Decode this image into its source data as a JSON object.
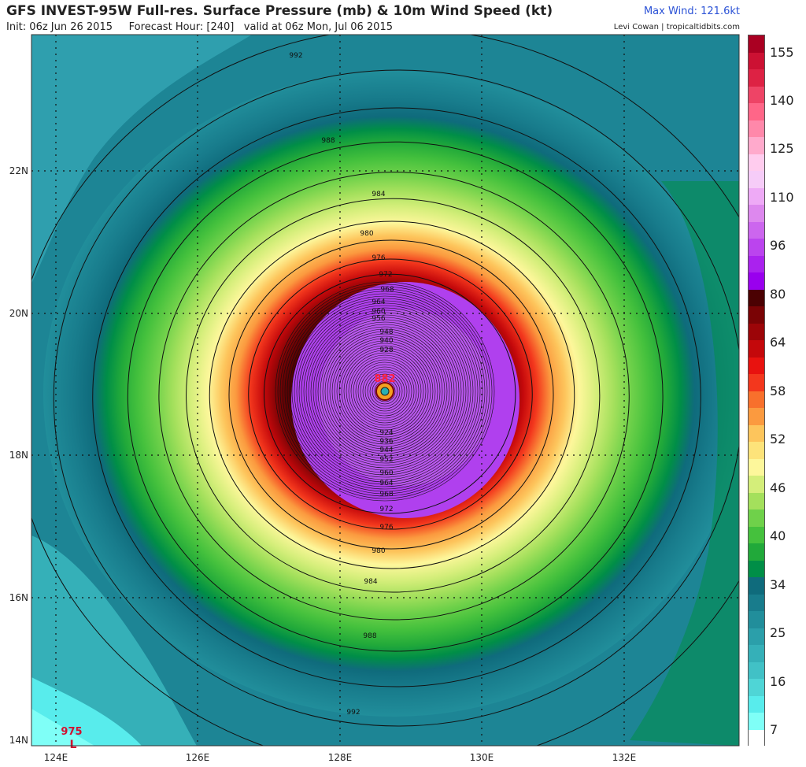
{
  "header": {
    "title": "GFS INVEST-95W Full-res. Surface Pressure (mb) & 10m Wind Speed (kt)",
    "init": "Init: 06z Jun 26 2015",
    "forecast_hour": "Forecast Hour: [240]",
    "valid": "valid at 06z Mon, Jul 06 2015",
    "max_wind": "Max Wind: 121.6kt",
    "credit": "Levi Cowan | tropicaltidbits.com"
  },
  "map": {
    "lon_labels": [
      "124E",
      "126E",
      "128E",
      "130E",
      "132E"
    ],
    "lat_labels": [
      "14N",
      "16N",
      "18N",
      "20N",
      "22N"
    ],
    "storm_center": {
      "lon": 128.6,
      "lat": 18.9,
      "pressure_label": "882"
    },
    "secondary_low": {
      "lon": 124.2,
      "lat": 14.0,
      "pressure_label": "975",
      "symbol": "L"
    },
    "isobar_labels_outer": [
      "992",
      "988",
      "984",
      "980",
      "976",
      "972",
      "968",
      "964",
      "960",
      "956",
      "948",
      "940",
      "928"
    ],
    "isobar_labels_inner_south": [
      "924",
      "936",
      "944",
      "952",
      "960",
      "964",
      "968",
      "972",
      "976",
      "980",
      "984",
      "988",
      "992"
    ]
  },
  "colorbar": {
    "tick_labels": [
      "155",
      "140",
      "125",
      "110",
      "96",
      "80",
      "64",
      "58",
      "52",
      "46",
      "40",
      "34",
      "25",
      "16",
      "7"
    ],
    "colors": [
      "#ffffff",
      "#7ffff7",
      "#58ecec",
      "#4fd5d6",
      "#41c1c6",
      "#35b0b8",
      "#2b9faa",
      "#218e9b",
      "#187c8c",
      "#0f6b7c",
      "#008e47",
      "#21a93a",
      "#45c13d",
      "#6fd14a",
      "#a4e05c",
      "#d4ee7a",
      "#fdf79b",
      "#fde37a",
      "#fdc55c",
      "#fb9a3f",
      "#f8702c",
      "#f3371d",
      "#e8120f",
      "#c4080b",
      "#9c0508",
      "#7a0305",
      "#4b0102",
      "#9900ee",
      "#aa22ee",
      "#bb44ee",
      "#cc66ee",
      "#dd88ee",
      "#eeaaf6",
      "#f6ccf8",
      "#ffccee",
      "#ffaacc",
      "#ff88aa",
      "#ff6688",
      "#ee4466",
      "#dd2244",
      "#cc1133",
      "#aa0022"
    ]
  }
}
